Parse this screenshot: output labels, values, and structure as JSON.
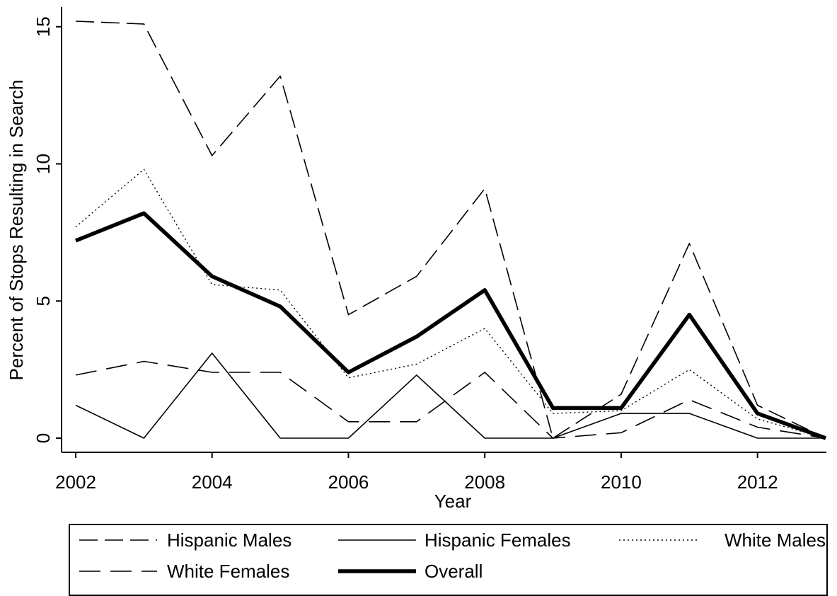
{
  "chart_data": {
    "type": "line",
    "xlabel": "Year",
    "ylabel": "Percent of Stops Resulting in Search",
    "x": [
      2002,
      2003,
      2004,
      2005,
      2006,
      2007,
      2008,
      2009,
      2010,
      2011,
      2012,
      2013
    ],
    "xlim": [
      2002,
      2013
    ],
    "ylim": [
      0,
      15.2
    ],
    "xticks": [
      2002,
      2004,
      2006,
      2008,
      2010,
      2012
    ],
    "yticks": [
      0,
      5,
      10,
      15
    ],
    "xtick_labels": [
      "2002",
      "2004",
      "2006",
      "2008",
      "2010",
      "2012"
    ],
    "ytick_labels": [
      "0",
      "5",
      "10",
      "15"
    ],
    "grid": false,
    "legend_position": "bottom",
    "series": [
      {
        "name": "Hispanic Males",
        "style": "dashed",
        "color": "#000000",
        "values": [
          15.2,
          15.1,
          10.3,
          13.2,
          4.5,
          5.9,
          9.1,
          0.0,
          1.6,
          7.1,
          1.2,
          0.0
        ]
      },
      {
        "name": "Hispanic Females",
        "style": "solid",
        "color": "#000000",
        "values": [
          1.2,
          0.0,
          3.1,
          0.0,
          0.0,
          2.3,
          0.0,
          0.0,
          0.9,
          0.9,
          0.0,
          0.0
        ]
      },
      {
        "name": "White Males",
        "style": "dotted",
        "color": "#000000",
        "values": [
          7.7,
          9.8,
          5.6,
          5.4,
          2.2,
          2.7,
          4.0,
          0.9,
          1.0,
          2.5,
          0.7,
          0.0
        ]
      },
      {
        "name": "White Females",
        "style": "longdash",
        "color": "#000000",
        "values": [
          2.3,
          2.8,
          2.4,
          2.4,
          0.6,
          0.6,
          2.4,
          0.0,
          0.2,
          1.4,
          0.4,
          0.0
        ]
      },
      {
        "name": "Overall",
        "style": "thick",
        "color": "#000000",
        "values": [
          7.2,
          8.2,
          5.9,
          4.8,
          2.4,
          3.7,
          5.4,
          1.1,
          1.1,
          4.5,
          0.9,
          0.0
        ]
      }
    ]
  }
}
